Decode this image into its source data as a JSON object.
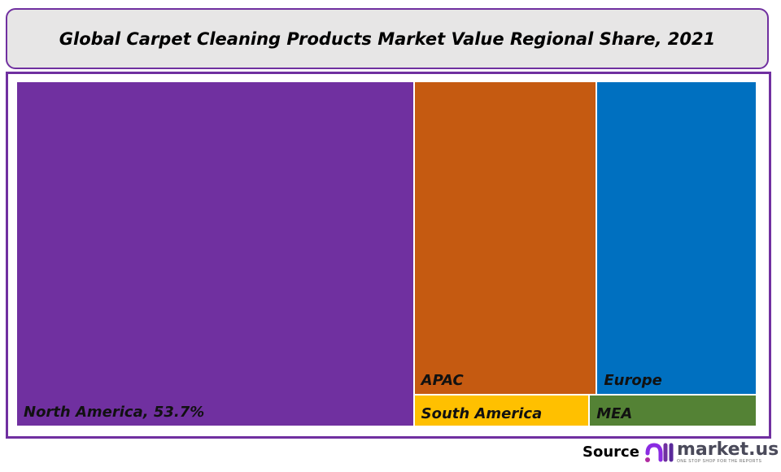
{
  "chart_data": {
    "type": "treemap",
    "title": "Global Carpet Cleaning Products Market Value Regional Share, 2021",
    "unit": "%",
    "items": [
      {
        "name": "North America",
        "value": 53.7,
        "label": "North America, 53.7%",
        "color": "#7030a0"
      },
      {
        "name": "APAC",
        "value": 22.4,
        "label": "APAC",
        "color": "#c55a11"
      },
      {
        "name": "Europe",
        "value": 19.6,
        "label": "Europe",
        "color": "#0070c0"
      },
      {
        "name": "South America",
        "value": 2.2,
        "label": "South America",
        "color": "#ffc000"
      },
      {
        "name": "MEA",
        "value": 2.1,
        "label": "MEA",
        "color": "#548235"
      }
    ]
  },
  "footer": {
    "source_label": "Source",
    "brand": "market.us",
    "tagline": "ONE STOP SHOP FOR THE REPORTS"
  },
  "colors": {
    "frame": "#7030a0",
    "title_bg": "#e7e6e6"
  }
}
